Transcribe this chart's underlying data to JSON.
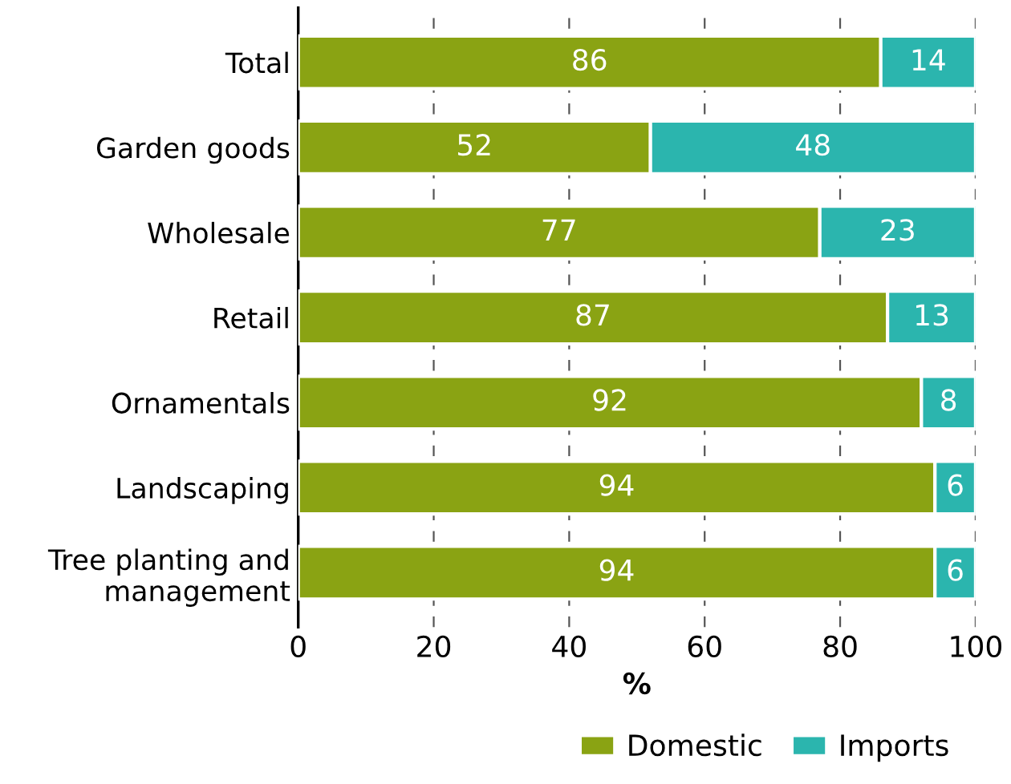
{
  "chart_data": {
    "type": "bar",
    "orientation": "horizontal",
    "stacked": true,
    "categories": [
      "Total",
      "Garden goods",
      "Wholesale",
      "Retail",
      "Ornamentals",
      "Landscaping",
      "Tree planting and\nmanagement"
    ],
    "series": [
      {
        "name": "Domestic",
        "color": "#8aa313",
        "values": [
          86,
          52,
          77,
          87,
          92,
          94,
          94
        ]
      },
      {
        "name": "Imports",
        "color": "#2bb5ae",
        "values": [
          14,
          48,
          23,
          13,
          8,
          6,
          6
        ]
      }
    ],
    "data_labels": true,
    "xlabel": "%",
    "xlim": [
      0,
      100
    ],
    "xticks": [
      0,
      20,
      40,
      60,
      80,
      100
    ],
    "grid": "x",
    "legend": "bottom right"
  }
}
